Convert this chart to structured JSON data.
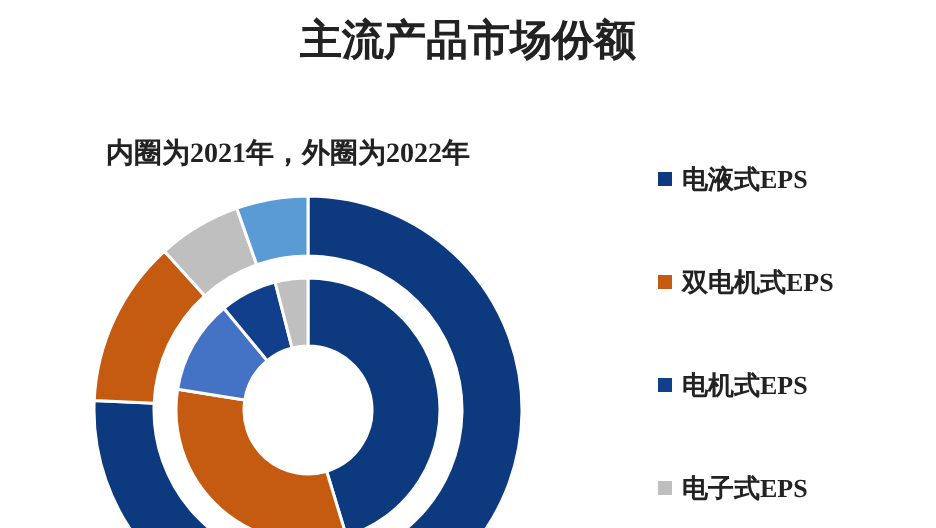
{
  "chart_data": {
    "type": "donut",
    "title": "主流产品市场份额",
    "subtitle": "内圈为2021年，外圈为2022年",
    "categories": [
      "电液式EPS",
      "双电机式EPS",
      null,
      "电机式EPS",
      "电子式EPS",
      null
    ],
    "colors": [
      "#0d3a7e",
      "#c55a11",
      "#4472c4",
      "#113f8c",
      "#bfbfbf",
      "#5b9bd5"
    ],
    "legend": "right",
    "series": [
      {
        "values": [
          45.3,
          32.2,
          11.5,
          7.0,
          4.0,
          null
        ]
      },
      {
        "values": [
          75.7,
          12.6,
          null,
          null,
          6.3,
          5.4
        ]
      }
    ]
  }
}
